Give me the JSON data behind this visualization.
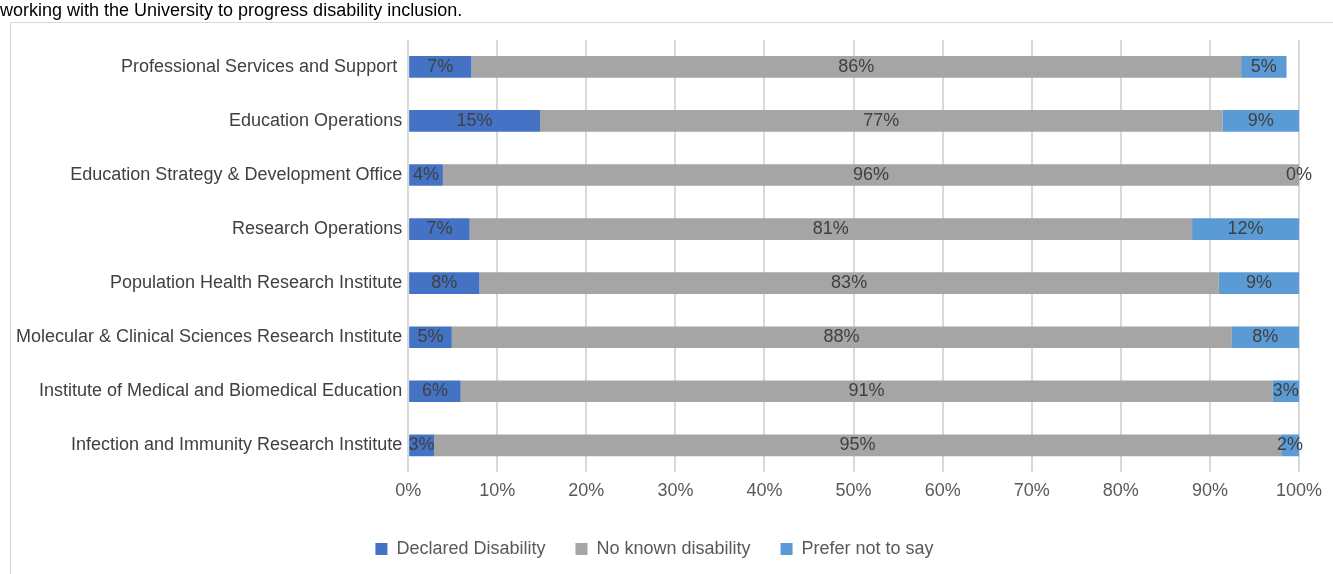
{
  "chart_data": {
    "type": "bar",
    "orientation": "horizontal",
    "stacked": true,
    "annotations": [
      "working with the University to progress disability inclusion."
    ],
    "categories": [
      "Professional Services and Support ",
      "Education Operations",
      "Education Strategy & Development Office",
      "Research Operations",
      "Population Health Research Institute",
      "Molecular & Clinical Sciences Research Institute",
      "Institute of Medical and Biomedical Education",
      "Infection and Immunity Research Institute"
    ],
    "series": [
      {
        "name": "Declared Disability",
        "color": "#4472c4",
        "values": [
          7.1,
          14.8,
          3.9,
          6.9,
          8.0,
          4.9,
          5.9,
          2.9
        ],
        "value_labels": [
          "7%",
          "15%",
          "4%",
          "7%",
          "8%",
          "5%",
          "6%",
          "3%"
        ]
      },
      {
        "name": "No known disability",
        "color": "#a5a5a5",
        "values": [
          86.4,
          76.6,
          96.1,
          81.1,
          83.0,
          87.5,
          91.1,
          95.1
        ],
        "value_labels": [
          "86%",
          "77%",
          "96%",
          "81%",
          "83%",
          "88%",
          "91%",
          "95%"
        ]
      },
      {
        "name": "Prefer not to say",
        "color": "#5b9bd5",
        "values": [
          5.1,
          8.6,
          0,
          12.0,
          9.0,
          7.6,
          3.0,
          2.0
        ],
        "value_labels": [
          "5%",
          "9%",
          "0%",
          "12%",
          "9%",
          "8%",
          "3%",
          "2%"
        ]
      }
    ],
    "xlim": [
      0,
      100
    ],
    "xticks": [
      {
        "value": 0,
        "label": "0%"
      },
      {
        "value": 10,
        "label": "10%"
      },
      {
        "value": 20,
        "label": "20%"
      },
      {
        "value": 30,
        "label": "30%"
      },
      {
        "value": 40,
        "label": "40%"
      },
      {
        "value": 50,
        "label": "50%"
      },
      {
        "value": 60,
        "label": "60%"
      },
      {
        "value": 70,
        "label": "70%"
      },
      {
        "value": 80,
        "label": "80%"
      },
      {
        "value": 90,
        "label": "90%"
      },
      {
        "value": 100,
        "label": "100%"
      }
    ],
    "grid": "x",
    "legend": "bottom"
  }
}
